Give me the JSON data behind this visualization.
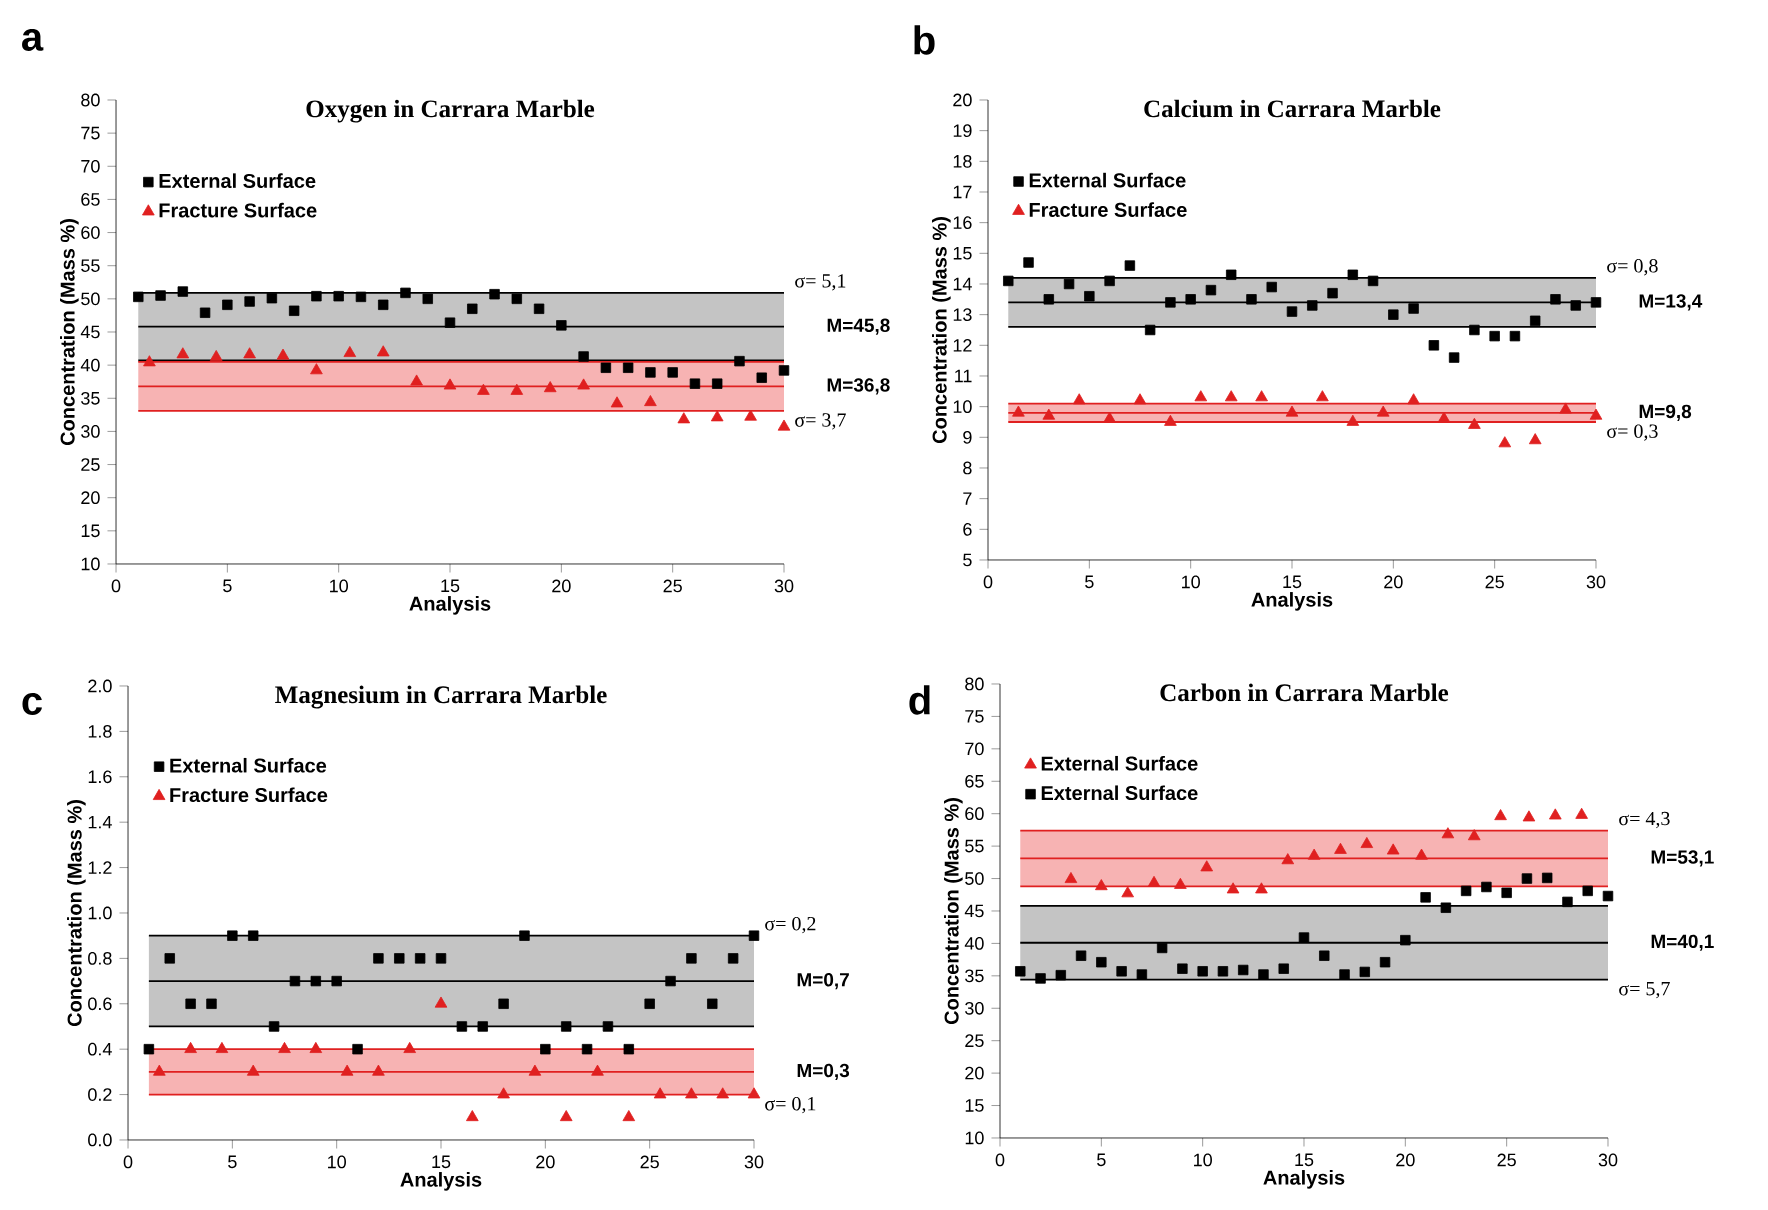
{
  "chart_data": [
    {
      "type": "scatter",
      "title": "Oxygen in Carrara Marble",
      "xlabel": "Analysis",
      "ylabel": "Concentration (Mass %)",
      "annotations": [
        "a"
      ],
      "xlim": [
        0,
        30
      ],
      "xticks": [
        0,
        5,
        10,
        15,
        20,
        25,
        30
      ],
      "ylim": [
        10,
        80
      ],
      "yticks": [
        10,
        15,
        20,
        25,
        30,
        35,
        40,
        45,
        50,
        55,
        60,
        65,
        70,
        75,
        80
      ],
      "legend": "top left",
      "series": [
        {
          "name": "External Surface",
          "color": "#000000",
          "marker": "square",
          "x": [
            1,
            2,
            3,
            4,
            5,
            6,
            7,
            8,
            9,
            10,
            11,
            12,
            13,
            14,
            15,
            16,
            17,
            18,
            19,
            20,
            21,
            22,
            23,
            24,
            25,
            26,
            27,
            28,
            29,
            30
          ],
          "values": [
            50.3,
            50.5,
            51.1,
            47.9,
            49.1,
            49.6,
            50.1,
            48.2,
            50.4,
            50.4,
            50.3,
            49.1,
            50.9,
            50,
            46.4,
            48.5,
            50.7,
            50,
            48.5,
            46,
            41.3,
            39.6,
            39.6,
            38.9,
            38.9,
            37.2,
            37.2,
            40.6,
            38.1,
            39.2
          ]
        },
        {
          "name": "Fracture Surface",
          "color": "#e02020",
          "marker": "triangle",
          "x": [
            1.5,
            3,
            4.5,
            6,
            7.5,
            9,
            10.5,
            12,
            13.5,
            15,
            16.5,
            18,
            19.5,
            21,
            22.5,
            24,
            25.5,
            27,
            28.5,
            30
          ],
          "values": [
            40.4,
            41.6,
            41.2,
            41.6,
            41.4,
            39.2,
            41.8,
            41.9,
            37.5,
            36.9,
            36.1,
            36.1,
            36.5,
            36.9,
            34.2,
            34.4,
            31.8,
            32.1,
            32.2,
            30.7
          ]
        }
      ],
      "bands": [
        {
          "axis": "y",
          "from": 40.7,
          "to": 50.9,
          "label": "σ= 5,1",
          "color": "#c4c4c4"
        },
        {
          "axis": "y",
          "from": 33.1,
          "to": 40.5,
          "label": "σ= 3,7",
          "color": "#f7b3b3"
        }
      ],
      "ref_lines": [
        {
          "axis": "y",
          "value": 45.8,
          "label": "M=45,8",
          "color": "#000000"
        },
        {
          "axis": "y",
          "value": 36.8,
          "label": "M=36,8",
          "color": "#e02020"
        },
        {
          "axis": "y",
          "value": 50.9,
          "color": "#000000"
        },
        {
          "axis": "y",
          "value": 40.7,
          "color": "#000000"
        },
        {
          "axis": "y",
          "value": 40.5,
          "color": "#e02020"
        },
        {
          "axis": "y",
          "value": 33.1,
          "color": "#e02020"
        }
      ]
    },
    {
      "type": "scatter",
      "title": "Calcium in Carrara Marble",
      "xlabel": "Analysis",
      "ylabel": "Concentration (Mass %)",
      "annotations": [
        "b"
      ],
      "xlim": [
        0,
        30
      ],
      "xticks": [
        0,
        5,
        10,
        15,
        20,
        25,
        30
      ],
      "ylim": [
        5,
        20
      ],
      "yticks": [
        5,
        6,
        7,
        8,
        9,
        10,
        11,
        12,
        13,
        14,
        15,
        16,
        17,
        18,
        19,
        20
      ],
      "legend": "top left",
      "series": [
        {
          "name": "External Surface",
          "color": "#000000",
          "marker": "square",
          "x": [
            1,
            2,
            3,
            4,
            5,
            6,
            7,
            8,
            9,
            10,
            11,
            12,
            13,
            14,
            15,
            16,
            17,
            18,
            19,
            20,
            21,
            22,
            23,
            24,
            25,
            26,
            27,
            28,
            29,
            30
          ],
          "values": [
            14.1,
            14.7,
            13.5,
            14.0,
            13.6,
            14.1,
            14.6,
            12.5,
            13.4,
            13.5,
            13.8,
            14.3,
            13.5,
            13.9,
            13.1,
            13.3,
            13.7,
            14.3,
            14.1,
            13.0,
            13.2,
            12.0,
            11.6,
            12.5,
            12.3,
            12.3,
            12.8,
            13.5,
            13.3,
            13.4
          ]
        },
        {
          "name": "Fracture Surface",
          "color": "#e02020",
          "marker": "triangle",
          "x": [
            1.5,
            3,
            4.5,
            6,
            7.5,
            9,
            10.5,
            12,
            13.5,
            15,
            16.5,
            18,
            19.5,
            21,
            22.5,
            24,
            25.5,
            27,
            28.5,
            30
          ],
          "values": [
            9.8,
            9.7,
            10.2,
            9.6,
            10.2,
            9.5,
            10.3,
            10.3,
            10.3,
            9.8,
            10.3,
            9.5,
            9.8,
            10.2,
            9.6,
            9.4,
            8.8,
            8.9,
            9.9,
            9.7
          ]
        }
      ],
      "bands": [
        {
          "axis": "y",
          "from": 12.6,
          "to": 14.2,
          "label": "σ= 0,8",
          "color": "#c4c4c4"
        },
        {
          "axis": "y",
          "from": 9.5,
          "to": 10.1,
          "label": "σ= 0,3",
          "color": "#f7b3b3"
        }
      ],
      "ref_lines": [
        {
          "axis": "y",
          "value": 13.4,
          "label": "M=13,4",
          "color": "#000000"
        },
        {
          "axis": "y",
          "value": 9.8,
          "label": "M=9,8",
          "color": "#e02020"
        },
        {
          "axis": "y",
          "value": 14.2,
          "color": "#000000"
        },
        {
          "axis": "y",
          "value": 12.6,
          "color": "#000000"
        },
        {
          "axis": "y",
          "value": 10.1,
          "color": "#e02020"
        },
        {
          "axis": "y",
          "value": 9.5,
          "color": "#e02020"
        }
      ]
    },
    {
      "type": "scatter",
      "title": "Magnesium in Carrara Marble",
      "xlabel": "Analysis",
      "ylabel": "Concentration (Mass %)",
      "annotations": [
        "c"
      ],
      "xlim": [
        0,
        30
      ],
      "xticks": [
        0,
        5,
        10,
        15,
        20,
        25,
        30
      ],
      "ylim": [
        0,
        2
      ],
      "yticks": [
        {
          "value": 0,
          "label": "0.0"
        },
        0.2,
        0.4,
        0.6,
        0.8,
        {
          "value": 1,
          "label": "1.0"
        },
        1.2,
        1.4,
        1.6,
        1.8,
        {
          "value": 2,
          "label": "2.0"
        }
      ],
      "legend": "top left",
      "series": [
        {
          "name": "External Surface",
          "color": "#000000",
          "marker": "square",
          "x": [
            1,
            2,
            3,
            4,
            5,
            6,
            7,
            8,
            9,
            10,
            11,
            12,
            13,
            14,
            15,
            16,
            17,
            18,
            19,
            20,
            21,
            22,
            23,
            24,
            25,
            26,
            27,
            28,
            29,
            30
          ],
          "values": [
            0.4,
            0.8,
            0.6,
            0.6,
            0.9,
            0.9,
            0.5,
            0.7,
            0.7,
            0.7,
            0.4,
            0.8,
            0.8,
            0.8,
            0.8,
            0.5,
            0.5,
            0.6,
            0.9,
            0.4,
            0.5,
            0.4,
            0.5,
            0.4,
            0.6,
            0.7,
            0.8,
            0.6,
            0.8,
            0.9
          ]
        },
        {
          "name": "Fracture Surface",
          "color": "#e02020",
          "marker": "triangle",
          "x": [
            1.5,
            3,
            4.5,
            6,
            7.5,
            9,
            10.5,
            12,
            13.5,
            15,
            16.5,
            18,
            19.5,
            21,
            22.5,
            24,
            25.5,
            27,
            28.5,
            30
          ],
          "values": [
            0.3,
            0.4,
            0.4,
            0.3,
            0.4,
            0.4,
            0.3,
            0.3,
            0.4,
            0.6,
            0.1,
            0.2,
            0.3,
            0.1,
            0.3,
            0.1,
            0.2,
            0.2,
            0.2,
            0.2
          ]
        }
      ],
      "bands": [
        {
          "axis": "y",
          "from": 0.5,
          "to": 0.9,
          "label": "σ= 0,2",
          "color": "#c4c4c4"
        },
        {
          "axis": "y",
          "from": 0.2,
          "to": 0.4,
          "label": "σ= 0,1",
          "color": "#f7b3b3"
        }
      ],
      "ref_lines": [
        {
          "axis": "y",
          "value": 0.7,
          "label": "M=0,7",
          "color": "#000000"
        },
        {
          "axis": "y",
          "value": 0.3,
          "label": "M=0,3",
          "color": "#e02020"
        },
        {
          "axis": "y",
          "value": 0.9,
          "color": "#000000"
        },
        {
          "axis": "y",
          "value": 0.5,
          "color": "#000000"
        },
        {
          "axis": "y",
          "value": 0.4,
          "color": "#e02020"
        },
        {
          "axis": "y",
          "value": 0.2,
          "color": "#e02020"
        }
      ]
    },
    {
      "type": "scatter",
      "title": "Carbon in Carrara Marble",
      "xlabel": "Analysis",
      "ylabel": "Concentration (Mass %)",
      "annotations": [
        "d"
      ],
      "xlim": [
        0,
        30
      ],
      "xticks": [
        0,
        5,
        10,
        15,
        20,
        25,
        30
      ],
      "ylim": [
        10,
        80
      ],
      "yticks": [
        10,
        15,
        20,
        25,
        30,
        35,
        40,
        45,
        50,
        55,
        60,
        65,
        70,
        75,
        80
      ],
      "legend": "top left",
      "series": [
        {
          "name": "External Surface",
          "color": "#e02020",
          "marker": "triangle",
          "x": [
            3.5,
            5,
            6.3,
            7.6,
            8.9,
            10.2,
            11.5,
            12.9,
            14.2,
            15.5,
            16.8,
            18.1,
            19.4,
            20.8,
            22.1,
            23.4,
            24.7,
            26.1,
            27.4,
            28.7
          ],
          "values": [
            49.9,
            48.8,
            47.7,
            49.3,
            49.0,
            51.7,
            48.3,
            48.3,
            52.8,
            53.5,
            54.4,
            55.3,
            54.3,
            53.5,
            56.8,
            56.5,
            59.6,
            59.4,
            59.7,
            59.8
          ]
        },
        {
          "name": "External Surface",
          "color": "#000000",
          "marker": "square",
          "x": [
            1,
            2,
            3,
            4,
            5,
            6,
            7,
            8,
            9,
            10,
            11,
            12,
            13,
            14,
            15,
            16,
            17,
            18,
            19,
            20,
            21,
            22,
            23,
            24,
            25,
            26,
            27,
            28,
            29,
            30
          ],
          "values": [
            35.7,
            34.6,
            35.1,
            38.1,
            37.1,
            35.7,
            35.2,
            39.3,
            36.1,
            35.7,
            35.7,
            35.9,
            35.2,
            36.1,
            40.9,
            38.1,
            35.2,
            35.6,
            37.1,
            40.5,
            47.1,
            45.5,
            48.1,
            48.7,
            47.8,
            50.0,
            50.1,
            46.4,
            48.1,
            47.3
          ]
        }
      ],
      "bands": [
        {
          "axis": "y",
          "from": 48.8,
          "to": 57.4,
          "label": "σ= 4,3",
          "color": "#f7b3b3"
        },
        {
          "axis": "y",
          "from": 34.4,
          "to": 45.8,
          "label": "σ= 5,7",
          "color": "#c4c4c4"
        }
      ],
      "ref_lines": [
        {
          "axis": "y",
          "value": 53.1,
          "label": "M=53,1",
          "color": "#e02020"
        },
        {
          "axis": "y",
          "value": 40.1,
          "label": "M=40,1",
          "color": "#000000"
        },
        {
          "axis": "y",
          "value": 57.4,
          "color": "#e02020"
        },
        {
          "axis": "y",
          "value": 48.8,
          "color": "#e02020"
        },
        {
          "axis": "y",
          "value": 45.8,
          "color": "#000000"
        },
        {
          "axis": "y",
          "value": 34.4,
          "color": "#000000"
        }
      ]
    }
  ]
}
